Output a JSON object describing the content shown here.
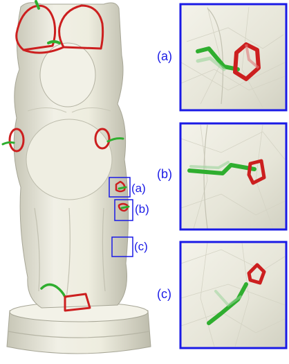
{
  "figure": {
    "callouts": [
      {
        "label": "(a)"
      },
      {
        "label": "(b)"
      },
      {
        "label": "(c)"
      }
    ],
    "panels": [
      {
        "label": "(a)"
      },
      {
        "label": "(b)"
      },
      {
        "label": "(c)"
      }
    ],
    "colors": {
      "frame": "#1a1ae6",
      "loop_red": "#cc1f1f",
      "loop_green": "#2fae2f",
      "mesh": "#e9e8dc",
      "mesh_shadow": "#b9b8a8"
    }
  }
}
